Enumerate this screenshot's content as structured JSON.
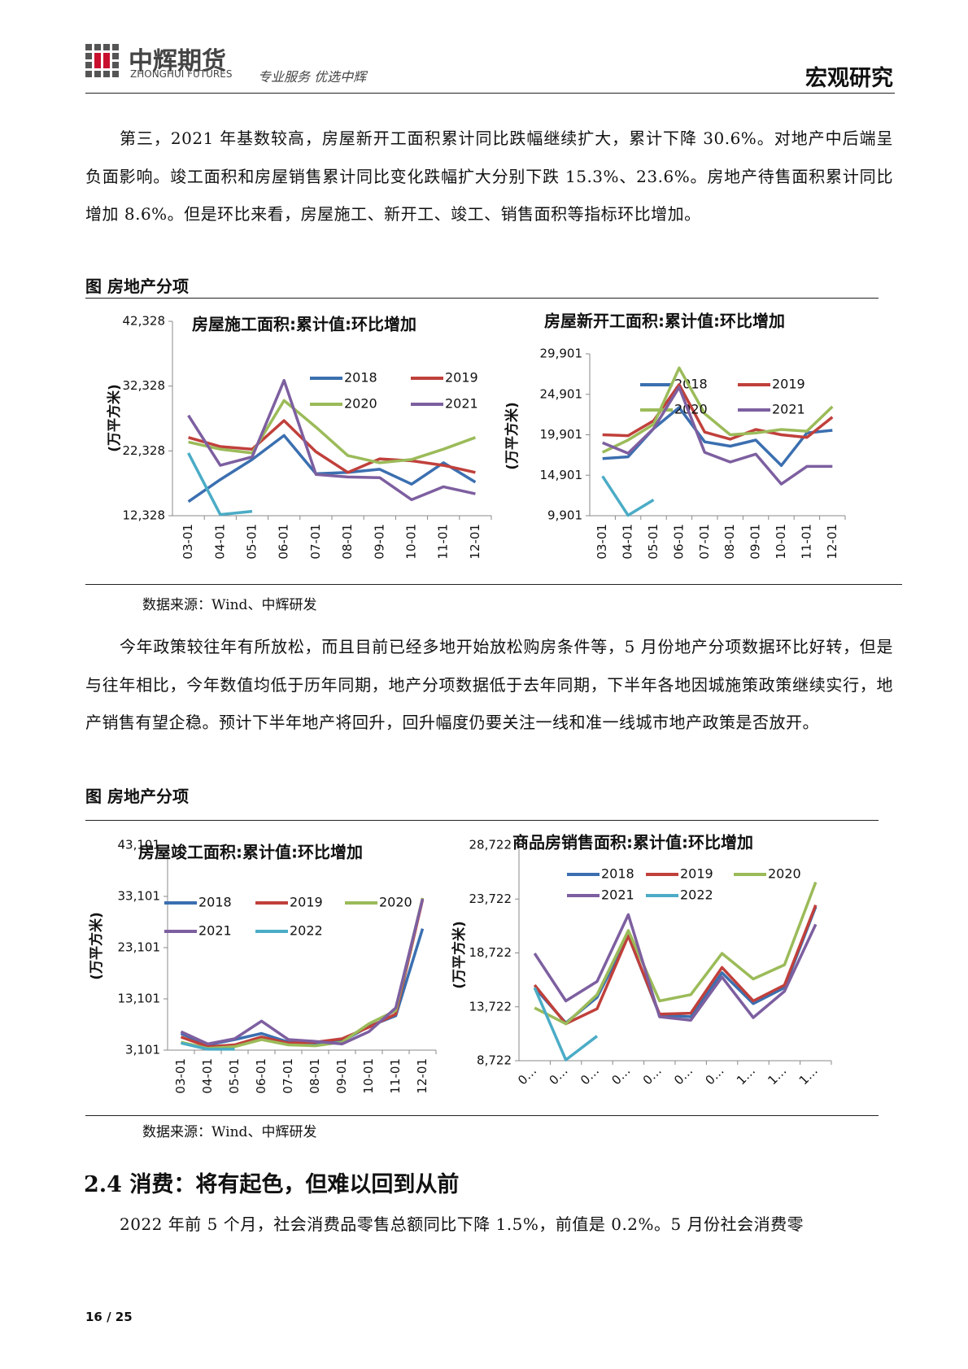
{
  "header": {
    "logo_cn": "中辉期货",
    "logo_en": "ZHONGHUI FUTURES",
    "slogan": "专业服务 优选中辉",
    "section": "宏观研究"
  },
  "paragraphs": [
    "第三，2021 年基数较高，房屋新开工面积累计同比跌幅继续扩大，累计下降 30.6%。对地产中后端呈负面影响。竣工面积和房屋销售累计同比变化跌幅扩大分别下跌 15.3%、23.6%。房地产待售面积累计同比增加 8.6%。但是环比来看，房屋施工、新开工、竣工、销售面积等指标环比增加。",
    "今年政策较往年有所放松，而且目前已经多地开始放松购房条件等，5 月份地产分项数据环比好转，但是与往年相比，今年数值均低于历年同期，地产分项数据低于去年同期，下半年各地因城施策政策继续实行，地产销售有望企稳。预计下半年地产将回升，回升幅度仍要关注一线和准一线城市地产政策是否放开。",
    "2022 年前 5 个月，社会消费品零售总额同比下降 1.5%，前值是 0.2%。5 月份社会消费零"
  ],
  "figures": [
    {
      "title": "图  房地产分项",
      "source": "数据来源：Wind、中辉研发"
    },
    {
      "title": "图  房地产分项",
      "source": "数据来源：Wind、中辉研发"
    }
  ],
  "section_heading": "2.4 消费：将有起色，但难以回到从前",
  "page_number": "16 / 25",
  "chart_data": [
    {
      "type": "line",
      "title": "房屋施工面积:累计值:环比增加",
      "y_label": "(万平方米)",
      "categories": [
        "03-01",
        "04-01",
        "05-01",
        "06-01",
        "07-01",
        "08-01",
        "09-01",
        "10-01",
        "11-01",
        "12-01"
      ],
      "ylim": [
        12328,
        42328
      ],
      "yticks": [
        {
          "value": 12328,
          "label": "12,328"
        },
        {
          "value": 22328,
          "label": "22,328"
        },
        {
          "value": 32328,
          "label": "32,328"
        },
        {
          "value": 42328,
          "label": "42,328"
        }
      ],
      "series": [
        {
          "name": "2018",
          "color": "#3b6fb0",
          "values": [
            14500,
            17900,
            21000,
            24700,
            18800,
            19000,
            19500,
            17200,
            20500,
            17500
          ]
        },
        {
          "name": "2019",
          "color": "#c0403b",
          "values": [
            24400,
            23000,
            22600,
            27000,
            22200,
            19000,
            21100,
            20800,
            20100,
            19000
          ]
        },
        {
          "name": "2020",
          "color": "#9bbb59",
          "values": [
            23700,
            22600,
            22000,
            30100,
            26000,
            21600,
            20500,
            21000,
            22600,
            24400
          ]
        },
        {
          "name": "2021",
          "color": "#7d5fa0",
          "values": [
            27800,
            20100,
            21400,
            33200,
            18700,
            18300,
            18200,
            14800,
            16800,
            15700
          ]
        },
        {
          "color": "#4bacc6",
          "values": [
            22000,
            12500,
            13000,
            null,
            null,
            null,
            null,
            null,
            null,
            null
          ]
        }
      ]
    },
    {
      "type": "line",
      "title": "房屋新开工面积:累计值:环比增加",
      "y_label": "(万平方米)",
      "categories": [
        "03-01",
        "04-01",
        "05-01",
        "06-01",
        "07-01",
        "08-01",
        "09-01",
        "10-01",
        "11-01",
        "12-01"
      ],
      "ylim": [
        9901,
        29901
      ],
      "yticks": [
        {
          "value": 9901,
          "label": "9,901"
        },
        {
          "value": 14901,
          "label": "14,901"
        },
        {
          "value": 19901,
          "label": "19,901"
        },
        {
          "value": 24901,
          "label": "24,901"
        },
        {
          "value": 29901,
          "label": "29,901"
        }
      ],
      "series": [
        {
          "name": "2018",
          "color": "#3b6fb0",
          "values": [
            16970,
            17180,
            20660,
            23270,
            19030,
            18490,
            19250,
            16100,
            20120,
            20450
          ]
        },
        {
          "name": "2019",
          "color": "#c0403b",
          "values": [
            19900,
            19790,
            21640,
            26100,
            20230,
            19360,
            20550,
            19900,
            19570,
            22080
          ]
        },
        {
          "name": "2020",
          "color": "#9bbb59",
          "values": [
            17730,
            19250,
            21200,
            28160,
            22510,
            19900,
            20120,
            20550,
            20340,
            23380
          ]
        },
        {
          "name": "2021",
          "color": "#7d5fa0",
          "values": [
            18920,
            17620,
            20660,
            25770,
            17730,
            16530,
            17510,
            13810,
            15990,
            15990
          ]
        },
        {
          "color": "#4bacc6",
          "values": [
            14790,
            9950,
            11860,
            null,
            null,
            null,
            null,
            null,
            null,
            null
          ]
        }
      ]
    },
    {
      "type": "line",
      "title": "房屋竣工面积:累计值:环比增加",
      "y_label": "(万平方米)",
      "categories": [
        "03-01",
        "04-01",
        "05-01",
        "06-01",
        "07-01",
        "08-01",
        "09-01",
        "10-01",
        "11-01",
        "12-01"
      ],
      "ylim": [
        3101,
        43101
      ],
      "yticks": [
        {
          "value": 3101,
          "label": "3,101"
        },
        {
          "value": 13101,
          "label": "13,101"
        },
        {
          "value": 23101,
          "label": "23,101"
        },
        {
          "value": 33101,
          "label": "33,101"
        },
        {
          "value": 43101,
          "label": "43,101"
        }
      ],
      "series": [
        {
          "name": "2018",
          "color": "#3b6fb0",
          "values": [
            6360,
            4130,
            5160,
            6360,
            4650,
            4480,
            4820,
            7740,
            9800,
            26800
          ]
        },
        {
          "name": "2019",
          "color": "#c0403b",
          "values": [
            5680,
            3790,
            4130,
            5680,
            4480,
            4650,
            5330,
            7570,
            10140,
            32460
          ]
        },
        {
          "name": "2020",
          "color": "#9bbb59",
          "values": [
            4650,
            3440,
            3790,
            5160,
            4130,
            3960,
            4650,
            8250,
            10830,
            32800
          ]
        },
        {
          "name": "2021",
          "color": "#7d5fa0",
          "values": [
            6710,
            4300,
            5330,
            8770,
            5160,
            4820,
            4300,
            6710,
            11340,
            32630
          ]
        },
        {
          "name": "2022",
          "color": "#4bacc6",
          "values": [
            4480,
            3270,
            3270,
            null,
            null,
            null,
            null,
            null,
            null,
            null
          ]
        }
      ]
    },
    {
      "type": "line",
      "title": "商品房销售面积:累计值:环比增加",
      "y_label": "(万平方米)",
      "categories": [
        "0…",
        "0…",
        "0…",
        "0…",
        "0…",
        "0…",
        "0…",
        "1…",
        "1…",
        "1…"
      ],
      "ylim": [
        8722,
        28722
      ],
      "yticks": [
        {
          "value": 8722,
          "label": "8,722"
        },
        {
          "value": 13722,
          "label": "13,722"
        },
        {
          "value": 18722,
          "label": "18,722"
        },
        {
          "value": 23722,
          "label": "23,722"
        },
        {
          "value": 28722,
          "label": "28,722"
        }
      ],
      "series": [
        {
          "name": "2018",
          "color": "#3b6fb0",
          "values": [
            15500,
            12230,
            14600,
            20310,
            12960,
            12800,
            16880,
            14020,
            15500,
            23010
          ]
        },
        {
          "name": "2019",
          "color": "#c0403b",
          "values": [
            15740,
            12150,
            13540,
            20310,
            13050,
            13130,
            17370,
            14270,
            15740,
            23170
          ]
        },
        {
          "name": "2020",
          "color": "#9bbb59",
          "values": [
            13620,
            12150,
            14850,
            20800,
            14270,
            14850,
            18680,
            16310,
            17620,
            25290
          ]
        },
        {
          "name": "2021",
          "color": "#7d5fa0",
          "values": [
            18680,
            14270,
            16070,
            22270,
            12800,
            12480,
            16480,
            12720,
            15170,
            21370
          ]
        },
        {
          "name": "2022",
          "color": "#4bacc6",
          "values": [
            15500,
            8800,
            11010,
            null,
            null,
            null,
            null,
            null,
            null,
            null
          ]
        }
      ]
    }
  ]
}
